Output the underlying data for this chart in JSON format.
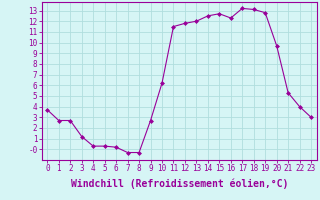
{
  "x": [
    0,
    1,
    2,
    3,
    4,
    5,
    6,
    7,
    8,
    9,
    10,
    11,
    12,
    13,
    14,
    15,
    16,
    17,
    18,
    19,
    20,
    21,
    22,
    23
  ],
  "y": [
    3.7,
    2.7,
    2.7,
    1.2,
    0.3,
    0.3,
    0.2,
    -0.3,
    -0.3,
    2.7,
    6.2,
    11.5,
    11.8,
    12.0,
    12.5,
    12.7,
    12.3,
    13.2,
    13.1,
    12.8,
    9.7,
    5.3,
    4.0,
    3.0
  ],
  "line_color": "#990099",
  "marker": "D",
  "marker_size": 2,
  "bg_color": "#d6f5f5",
  "grid_color": "#b0dede",
  "xlabel": "Windchill (Refroidissement éolien,°C)",
  "xlabel_color": "#990099",
  "ylabel_ticks": [
    0,
    1,
    2,
    3,
    4,
    5,
    6,
    7,
    8,
    9,
    10,
    11,
    12,
    13
  ],
  "xlim": [
    -0.5,
    23.5
  ],
  "ylim": [
    -1.0,
    13.8
  ],
  "xtick_labels": [
    "0",
    "1",
    "2",
    "3",
    "4",
    "5",
    "6",
    "7",
    "8",
    "9",
    "10",
    "11",
    "12",
    "13",
    "14",
    "15",
    "16",
    "17",
    "18",
    "19",
    "20",
    "21",
    "22",
    "23"
  ],
  "tick_color": "#990099",
  "tick_fontsize": 5.5,
  "xlabel_fontsize": 7,
  "spine_color": "#990099",
  "ytick_show": [
    0,
    1,
    2,
    3,
    4,
    5,
    6,
    7,
    8,
    9,
    10,
    11,
    12,
    13
  ],
  "ytick_labels": [
    "-0",
    "1",
    "2",
    "3",
    "4",
    "5",
    "6",
    "7",
    "8",
    "9",
    "10",
    "11",
    "12",
    "13"
  ]
}
